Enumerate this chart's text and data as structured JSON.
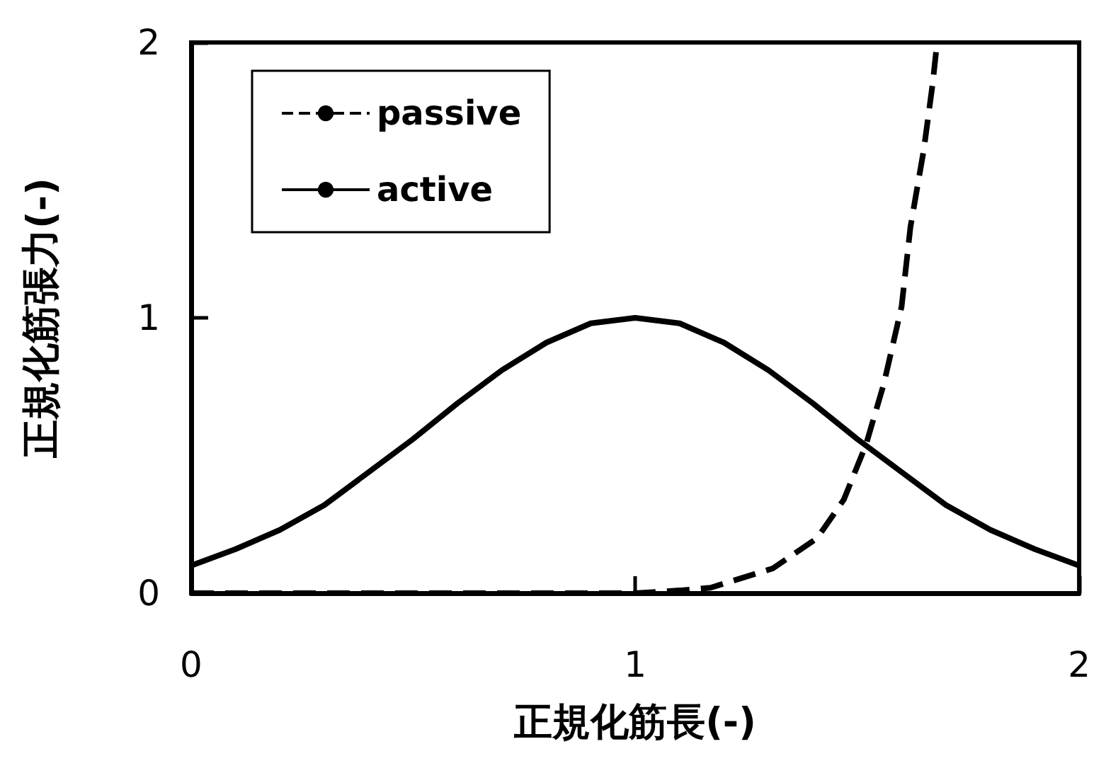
{
  "chart_data": {
    "type": "line",
    "xlabel": "正規化筋長(-)",
    "ylabel": "正規化筋張力(-)",
    "xlim": [
      0,
      2
    ],
    "xticks": [
      0,
      1,
      2
    ],
    "ylim": [
      0,
      2
    ],
    "yticks": [
      0,
      1,
      2
    ],
    "grid": false,
    "legend": "top left",
    "marker": "none",
    "series": [
      {
        "name": "passive",
        "color": "#000000",
        "line_style": "dashed",
        "x": [
          0,
          0.5,
          1,
          1.1,
          1.17,
          1.31,
          1.41,
          1.47,
          1.52,
          1.56,
          1.6,
          1.62,
          1.65,
          1.67,
          1.68
        ],
        "values": [
          0,
          0,
          0,
          0.01,
          0.02,
          0.09,
          0.2,
          0.34,
          0.54,
          0.76,
          1.04,
          1.33,
          1.61,
          1.85,
          2
        ]
      },
      {
        "name": "active",
        "color": "#000000",
        "line_style": "solid",
        "x": [
          0,
          0.1,
          0.2,
          0.3,
          0.4,
          0.5,
          0.6,
          0.7,
          0.8,
          0.9,
          1,
          1.1,
          1.2,
          1.3,
          1.4,
          1.5,
          1.6,
          1.7,
          1.8,
          1.9,
          2
        ],
        "values": [
          0.1,
          0.16,
          0.23,
          0.32,
          0.44,
          0.56,
          0.69,
          0.81,
          0.91,
          0.98,
          1,
          0.98,
          0.91,
          0.81,
          0.69,
          0.56,
          0.44,
          0.32,
          0.23,
          0.16,
          0.1
        ]
      }
    ]
  }
}
